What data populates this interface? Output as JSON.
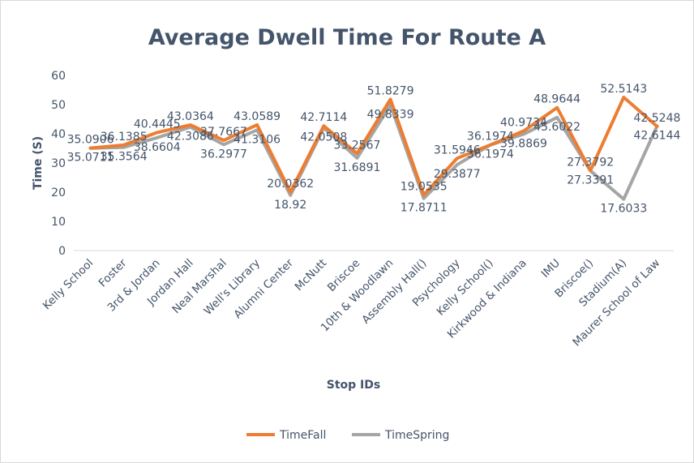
{
  "chart_data": {
    "type": "line",
    "title": "Average Dwell Time For Route A",
    "xlabel": "Stop IDs",
    "ylabel": "Time (S)",
    "ylim": [
      0,
      60
    ],
    "yticks": [
      0,
      10,
      20,
      30,
      40,
      50,
      60
    ],
    "grid": false,
    "legend_position": "bottom",
    "categories": [
      "Kelly School",
      "Foster",
      "3rd & Jordan",
      "Jordan Hall",
      "Neal Marshal",
      "Well's Library",
      "Alumni Center",
      "McNutt",
      "Briscoe",
      "10th & Woodlawn",
      "Assembly Hall()",
      "Psychology",
      "Kelly School()",
      "Kirkwood & Indiana",
      "IMU",
      "Briscoe()",
      "Stadium(A)",
      "Maurer School of Law"
    ],
    "series": [
      {
        "name": "TimeFall",
        "color": "#ed7d31",
        "values": [
          35.0906,
          36.1385,
          40.4445,
          43.0364,
          37.7667,
          43.0589,
          20.0362,
          42.7114,
          33.2567,
          51.8279,
          19.0535,
          31.5946,
          36.1974,
          40.9734,
          48.9644,
          27.3792,
          52.5143,
          42.5248
        ],
        "labels": [
          "35.0906",
          "36.1385",
          "40.4445",
          "43.0364",
          "37.7667",
          "43.0589",
          "20.0362",
          "42.7114",
          "33.2567",
          "51.8279",
          "19.0535",
          "31.5946",
          "36.1974",
          "40.9734",
          "48.9644",
          "27.3792",
          "52.5143",
          "42.5248"
        ]
      },
      {
        "name": "TimeSpring",
        "color": "#a5a5a5",
        "values": [
          35.0711,
          35.3564,
          38.6604,
          42.3086,
          36.2977,
          41.3106,
          18.92,
          42.0508,
          31.6891,
          49.8339,
          17.8711,
          29.3877,
          36.1974,
          39.8869,
          45.6022,
          27.3391,
          17.6033,
          42.6144
        ],
        "labels": [
          "35.0711",
          "35.3564",
          "38.6604",
          "42.3086",
          "36.2977",
          "41.3106",
          "18.92",
          "42.0508",
          "31.6891",
          "49.8339",
          "17.8711",
          "29.3877",
          "36.1974",
          "39.8869",
          "45.6022",
          "27.3391",
          "17.6033",
          "42.6144"
        ]
      }
    ]
  }
}
